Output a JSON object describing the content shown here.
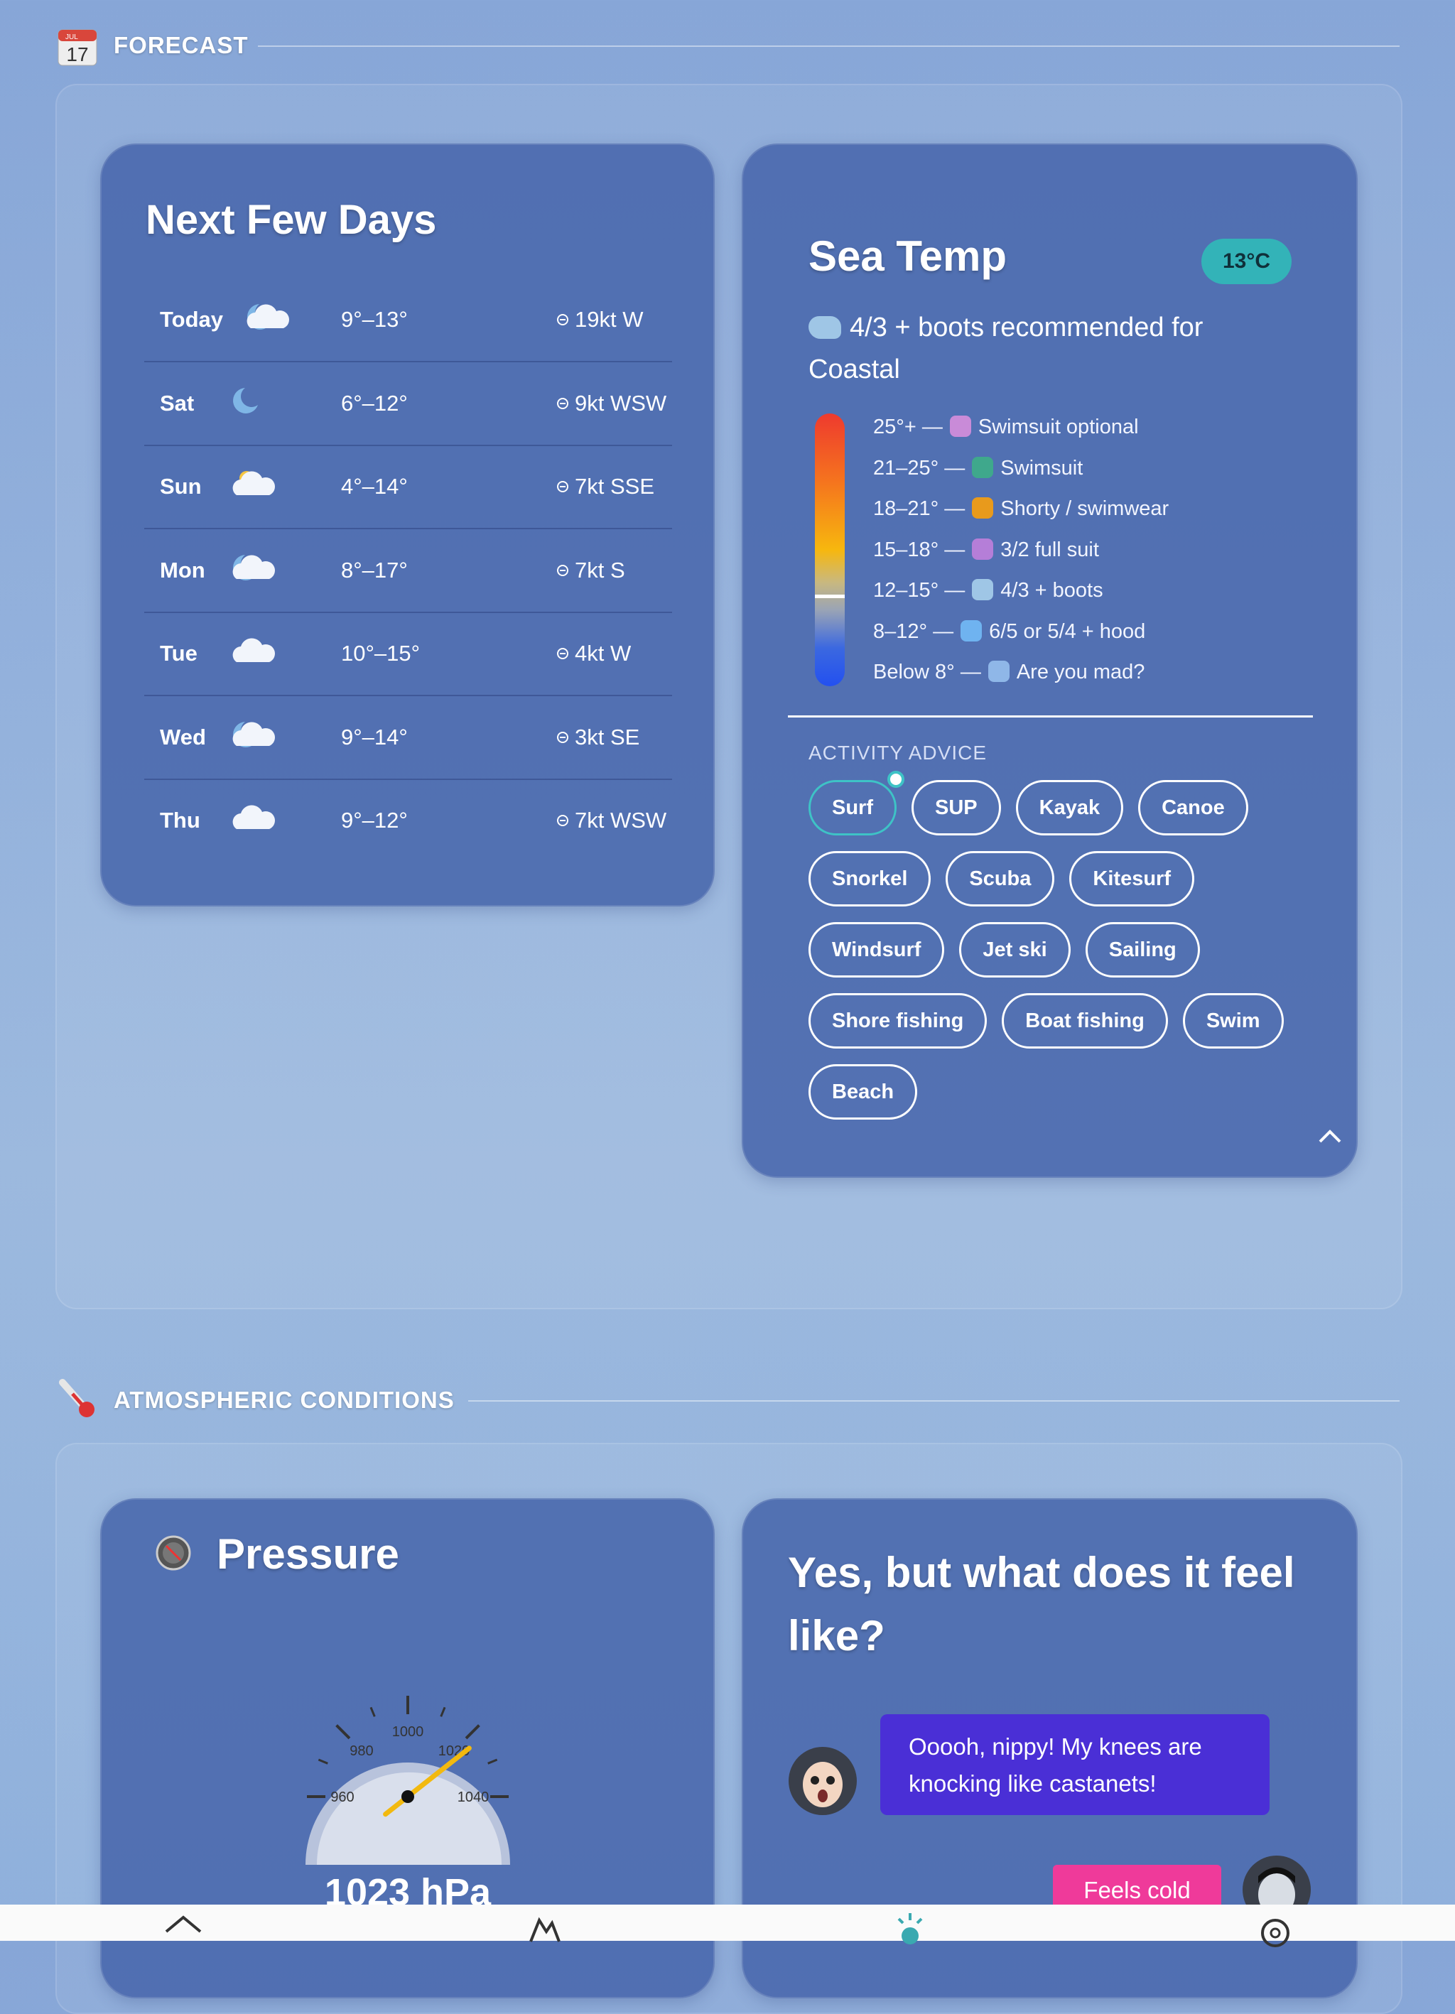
{
  "forecast": {
    "date_icon_month": "JUL",
    "date_icon_day": "17",
    "title": "FORECAST",
    "next_days": {
      "title": "Next Few Days",
      "days": [
        {
          "day": "Today",
          "icon": "moon-cloud",
          "temp": "9°–13°",
          "wind": "19kt W"
        },
        {
          "day": "Sat",
          "icon": "moon",
          "temp": "6°–12°",
          "wind": "9kt WSW"
        },
        {
          "day": "Sun",
          "icon": "sun-cloud",
          "temp": "4°–14°",
          "wind": "7kt SSE"
        },
        {
          "day": "Mon",
          "icon": "moon-cloud",
          "temp": "8°–17°",
          "wind": "7kt S"
        },
        {
          "day": "Tue",
          "icon": "cloud",
          "temp": "10°–15°",
          "wind": "4kt W"
        },
        {
          "day": "Wed",
          "icon": "moon-cloud",
          "temp": "9°–14°",
          "wind": "3kt SE"
        },
        {
          "day": "Thu",
          "icon": "cloud",
          "temp": "9°–12°",
          "wind": "7kt WSW"
        }
      ]
    },
    "sea_temp": {
      "title": "Sea Temp",
      "badge": "13°C",
      "recommendation": "4/3 + boots recommended for Coastal",
      "scale": [
        {
          "range": "25°+ —",
          "label": "Swimsuit optional"
        },
        {
          "range": "21–25° —",
          "label": "Swimsuit"
        },
        {
          "range": "18–21° —",
          "label": "Shorty / swimwear"
        },
        {
          "range": "15–18° —",
          "label": "3/2 full suit"
        },
        {
          "range": "12–15° —",
          "label": "4/3 + boots"
        },
        {
          "range": "8–12° —",
          "label": "6/5 or 5/4 + hood"
        },
        {
          "range": "Below 8° —",
          "label": "Are you mad?"
        }
      ],
      "activity_title": "ACTIVITY ADVICE",
      "activities": [
        "Surf",
        "SUP",
        "Kayak",
        "Canoe",
        "Snorkel",
        "Scuba",
        "Kitesurf",
        "Windsurf",
        "Jet ski",
        "Sailing",
        "Shore fishing",
        "Boat fishing",
        "Swim",
        "Beach"
      ],
      "selected_activity": "Surf"
    }
  },
  "atmospheric": {
    "title": "ATMOSPHERIC CONDITIONS",
    "pressure": {
      "title": "Pressure",
      "gauge_ticks": [
        960,
        980,
        1000,
        1020,
        1040
      ],
      "value": 1023,
      "value_label": "1023 hPa"
    },
    "feel": {
      "title": "Yes, but what does it feel like?",
      "message": "Ooooh, nippy! My knees are knocking like castanets!",
      "button": "Feels cold"
    }
  }
}
